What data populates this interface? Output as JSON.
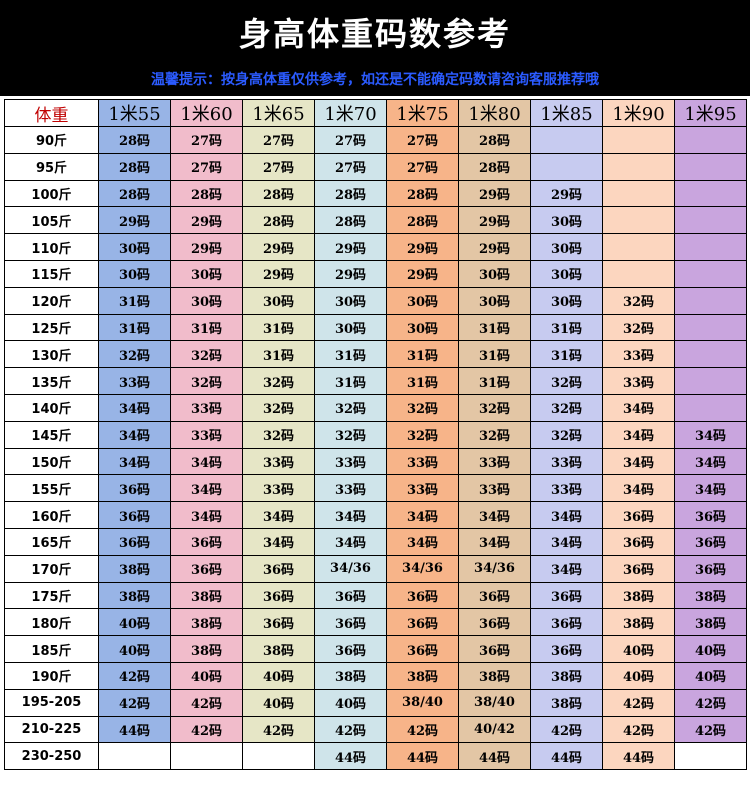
{
  "title": "身高体重码数参考",
  "tip": "温馨提示：按身高体重仅供参考，如还是不能确定码数请咨询客服推荐哦",
  "table": {
    "corner_label": "体重",
    "heights": [
      "1米55",
      "1米60",
      "1米65",
      "1米70",
      "1米75",
      "1米80",
      "1米85",
      "1米90",
      "1米95"
    ],
    "column_colors": [
      "#98b4e6",
      "#f1bccb",
      "#e6e6c6",
      "#cfe4ea",
      "#f7b489",
      "#e3c6a5",
      "#c7cbf0",
      "#fcd6bf",
      "#c9a5de"
    ],
    "rows": [
      {
        "weight": "90斤",
        "sizes": [
          "28码",
          "27码",
          "27码",
          "27码",
          "27码",
          "28码",
          "",
          "",
          ""
        ]
      },
      {
        "weight": "95斤",
        "sizes": [
          "28码",
          "27码",
          "27码",
          "27码",
          "27码",
          "28码",
          "",
          "",
          ""
        ]
      },
      {
        "weight": "100斤",
        "sizes": [
          "28码",
          "28码",
          "28码",
          "28码",
          "28码",
          "29码",
          "29码",
          "",
          ""
        ]
      },
      {
        "weight": "105斤",
        "sizes": [
          "29码",
          "29码",
          "28码",
          "28码",
          "28码",
          "29码",
          "30码",
          "",
          ""
        ]
      },
      {
        "weight": "110斤",
        "sizes": [
          "30码",
          "29码",
          "29码",
          "29码",
          "29码",
          "29码",
          "30码",
          "",
          ""
        ]
      },
      {
        "weight": "115斤",
        "sizes": [
          "30码",
          "30码",
          "29码",
          "29码",
          "29码",
          "30码",
          "30码",
          "",
          ""
        ]
      },
      {
        "weight": "120斤",
        "sizes": [
          "31码",
          "30码",
          "30码",
          "30码",
          "30码",
          "30码",
          "30码",
          "32码",
          ""
        ]
      },
      {
        "weight": "125斤",
        "sizes": [
          "31码",
          "31码",
          "31码",
          "30码",
          "30码",
          "31码",
          "31码",
          "32码",
          ""
        ]
      },
      {
        "weight": "130斤",
        "sizes": [
          "32码",
          "32码",
          "31码",
          "31码",
          "31码",
          "31码",
          "31码",
          "33码",
          ""
        ]
      },
      {
        "weight": "135斤",
        "sizes": [
          "33码",
          "32码",
          "32码",
          "31码",
          "31码",
          "31码",
          "32码",
          "33码",
          ""
        ]
      },
      {
        "weight": "140斤",
        "sizes": [
          "34码",
          "33码",
          "32码",
          "32码",
          "32码",
          "32码",
          "32码",
          "34码",
          ""
        ]
      },
      {
        "weight": "145斤",
        "sizes": [
          "34码",
          "33码",
          "32码",
          "32码",
          "32码",
          "32码",
          "32码",
          "34码",
          "34码"
        ]
      },
      {
        "weight": "150斤",
        "sizes": [
          "34码",
          "34码",
          "33码",
          "33码",
          "33码",
          "33码",
          "33码",
          "34码",
          "34码"
        ]
      },
      {
        "weight": "155斤",
        "sizes": [
          "36码",
          "34码",
          "33码",
          "33码",
          "33码",
          "33码",
          "33码",
          "34码",
          "34码"
        ]
      },
      {
        "weight": "160斤",
        "sizes": [
          "36码",
          "34码",
          "34码",
          "34码",
          "34码",
          "34码",
          "34码",
          "36码",
          "36码"
        ]
      },
      {
        "weight": "165斤",
        "sizes": [
          "36码",
          "36码",
          "34码",
          "34码",
          "34码",
          "34码",
          "34码",
          "36码",
          "36码"
        ]
      },
      {
        "weight": "170斤",
        "sizes": [
          "38码",
          "36码",
          "36码",
          "34/36",
          "34/36",
          "34/36",
          "34码",
          "36码",
          "36码"
        ]
      },
      {
        "weight": "175斤",
        "sizes": [
          "38码",
          "38码",
          "36码",
          "36码",
          "36码",
          "36码",
          "36码",
          "38码",
          "38码"
        ]
      },
      {
        "weight": "180斤",
        "sizes": [
          "40码",
          "38码",
          "36码",
          "36码",
          "36码",
          "36码",
          "36码",
          "38码",
          "38码"
        ]
      },
      {
        "weight": "185斤",
        "sizes": [
          "40码",
          "38码",
          "38码",
          "36码",
          "36码",
          "36码",
          "36码",
          "40码",
          "40码"
        ]
      },
      {
        "weight": "190斤",
        "sizes": [
          "42码",
          "40码",
          "40码",
          "38码",
          "38码",
          "38码",
          "38码",
          "40码",
          "40码"
        ]
      },
      {
        "weight": "195-205",
        "sizes": [
          "42码",
          "42码",
          "40码",
          "40码",
          "38/40",
          "38/40",
          "38码",
          "42码",
          "42码"
        ]
      },
      {
        "weight": "210-225",
        "sizes": [
          "44码",
          "42码",
          "42码",
          "42码",
          "42码",
          "40/42",
          "42码",
          "42码",
          "42码"
        ]
      },
      {
        "weight": "230-250",
        "sizes": [
          "",
          "",
          "",
          "44码",
          "44码",
          "44码",
          "44码",
          "44码",
          ""
        ]
      }
    ]
  }
}
